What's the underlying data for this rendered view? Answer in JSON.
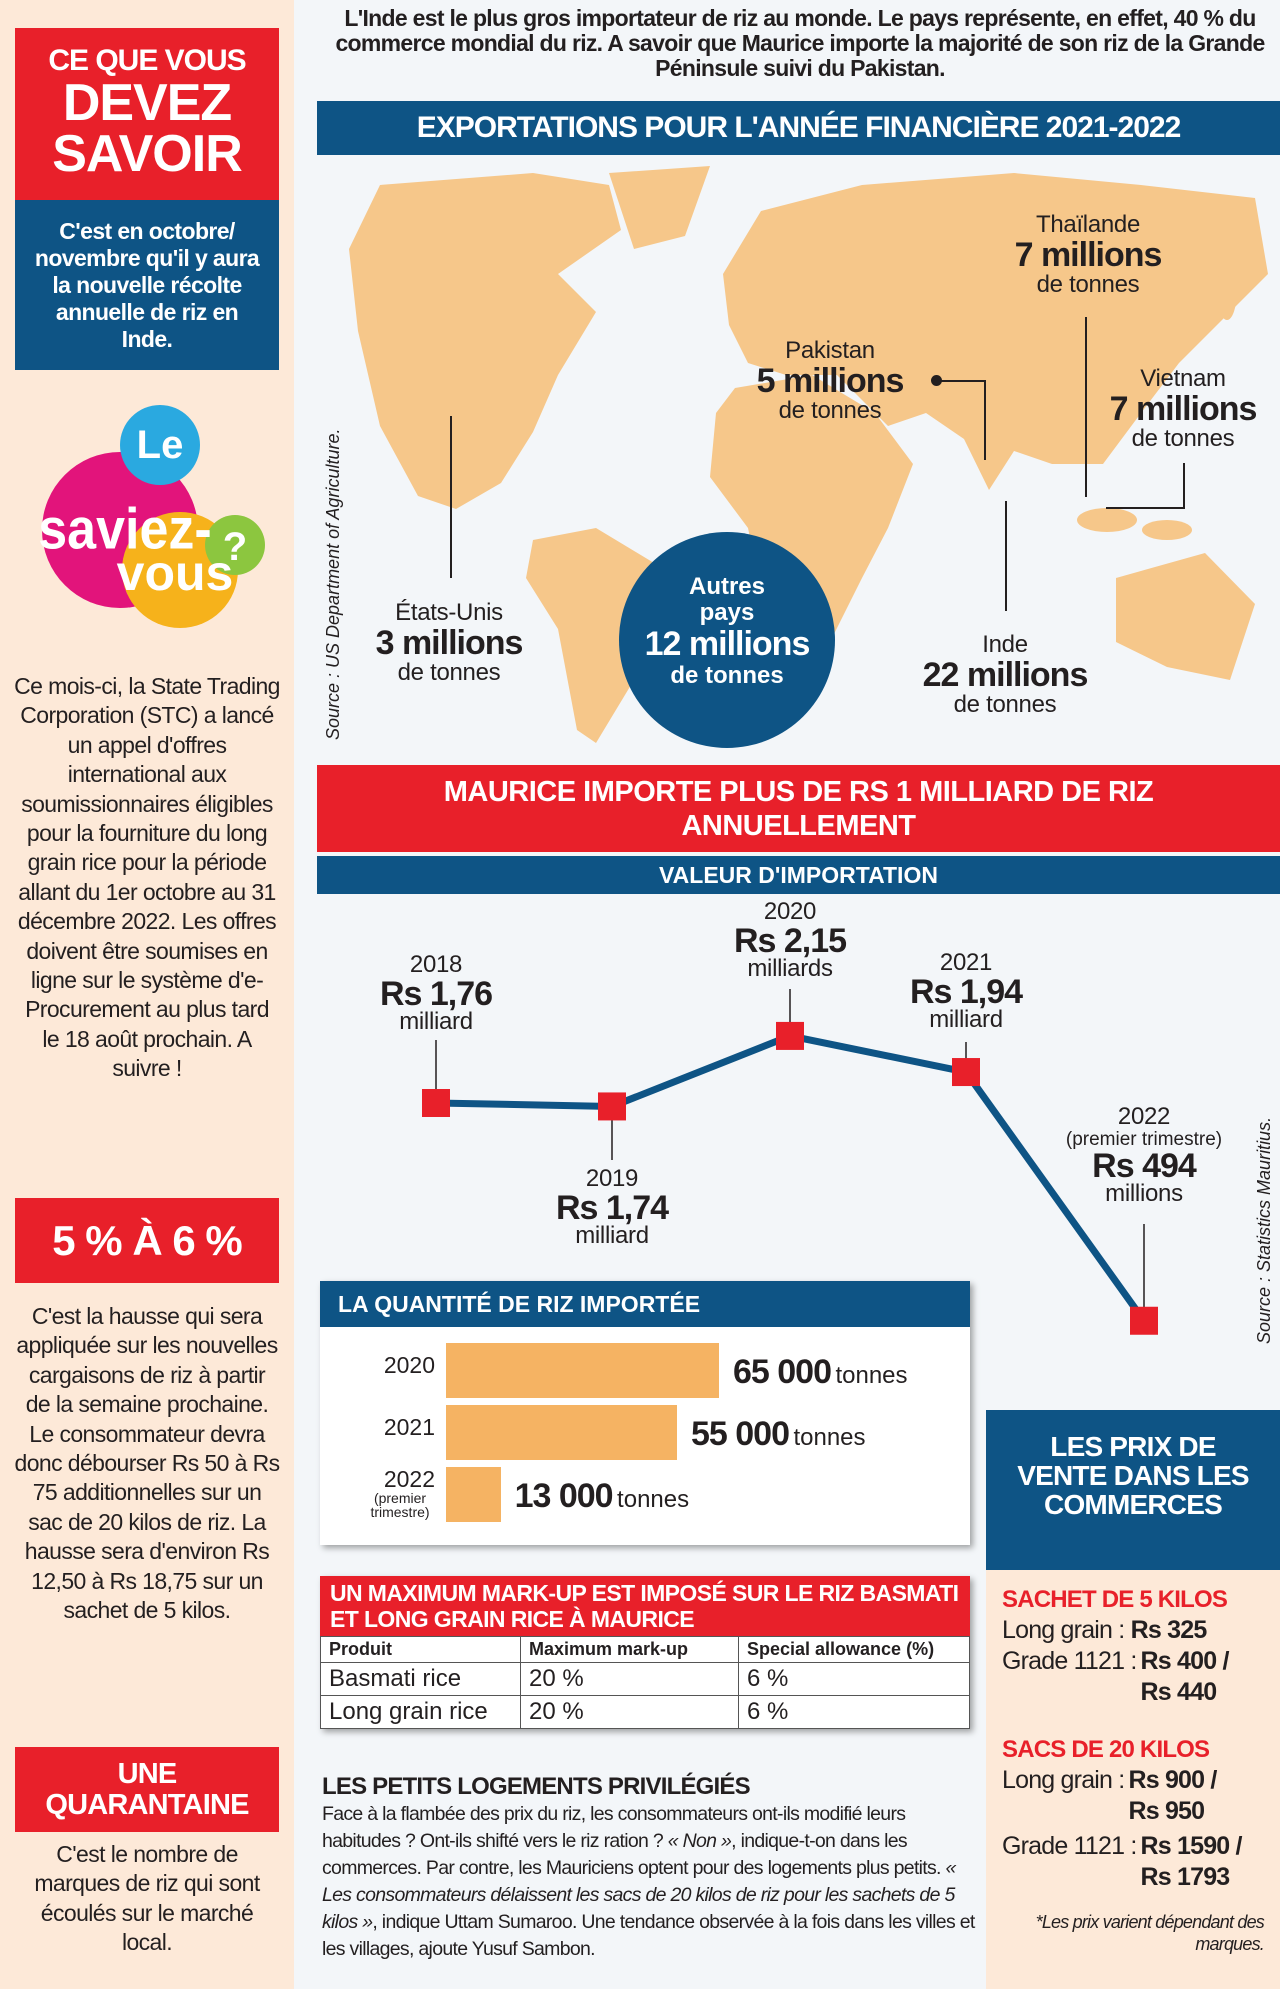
{
  "left": {
    "box1_title": [
      "CE QUE VOUS",
      "DEVEZ",
      "SAVOIR"
    ],
    "box1_sub": "C'est en octobre/ novembre qu'il y aura la nouvelle récolte annuelle de riz en Inde.",
    "logo_text": [
      "Le",
      "saviez-",
      "vous",
      "?"
    ],
    "para1": "Ce mois-ci, la State Trading Corporation (STC) a lancé un appel d'offres international aux soumissionnaires éligibles pour la fourniture du long grain rice pour la période allant du 1er octobre au 31 décembre 2022. Les offres doivent être soumises en ligne sur le système d'e-Procurement au plus tard le 18 août prochain. A suivre !",
    "box2_title": "5 % À 6 %",
    "para2": "C'est la hausse qui sera appliquée sur les nouvelles cargaisons de riz à partir de la semaine prochaine. Le consommateur devra donc débourser Rs 50 à Rs 75 additionnelles sur un sac de 20 kilos de riz. La hausse sera d'environ Rs 12,50 à Rs 18,75 sur un sachet de 5 kilos.",
    "box3_title": [
      "UNE",
      "QUARANTAINE"
    ],
    "para3": "C'est le nombre de marques de riz qui sont écoulés sur le marché local."
  },
  "intro": "L'Inde est le plus gros importateur de riz au monde. Le pays représente, en effet, 40 % du commerce mondial du riz. A savoir que Maurice importe la majorité de son riz de la Grande Péninsule suivi du Pakistan.",
  "map": {
    "title": "EXPORTATIONS POUR L'ANNÉE FINANCIÈRE 2021-2022",
    "source": "Source : US Department of Agriculture.",
    "unit": "de tonnes",
    "countries": [
      {
        "name": "Thaïlande",
        "value": "7 millions"
      },
      {
        "name": "Pakistan",
        "value": "5 millions"
      },
      {
        "name": "Vietnam",
        "value": "7 millions"
      },
      {
        "name": "Inde",
        "value": "22 millions"
      },
      {
        "name": "États-Unis",
        "value": "3 millions"
      }
    ],
    "others": {
      "name": "Autres pays",
      "value": "12 millions",
      "unit": "de tonnes"
    },
    "land_color": "#f6c78a"
  },
  "imports": {
    "title": "MAURICE IMPORTE PLUS DE RS 1 MILLIARD DE RIZ ANNUELLEMENT",
    "subtitle": "VALEUR D'IMPORTATION",
    "source": "Source : Statistics Mauritius."
  },
  "chart_data": [
    {
      "type": "line",
      "title": "VALEUR D'IMPORTATION",
      "unit": "Rs milliards",
      "categories": [
        "2018",
        "2019",
        "2020",
        "2021",
        "2022"
      ],
      "values": [
        1.76,
        1.74,
        2.15,
        1.94,
        0.494
      ],
      "labels": [
        {
          "year": "2018",
          "note": "",
          "value": "Rs 1,76",
          "unit": "milliard"
        },
        {
          "year": "2019",
          "note": "",
          "value": "Rs 1,74",
          "unit": "milliard"
        },
        {
          "year": "2020",
          "note": "",
          "value": "Rs 2,15",
          "unit": "milliards"
        },
        {
          "year": "2021",
          "note": "",
          "value": "Rs 1,94",
          "unit": "milliard"
        },
        {
          "year": "2022",
          "note": "(premier trimestre)",
          "value": "Rs 494",
          "unit": "millions"
        }
      ],
      "line_color": "#0e5485",
      "marker_color": "#e8202a"
    },
    {
      "type": "bar",
      "title": "LA QUANTITÉ DE RIZ IMPORTÉE",
      "orientation": "horizontal",
      "categories": [
        "2020",
        "2021",
        "2022"
      ],
      "category_notes": [
        "",
        "",
        "(premier trimestre)"
      ],
      "values": [
        65000,
        55000,
        13000
      ],
      "value_labels": [
        "65 000",
        "55 000",
        "13 000"
      ],
      "unit": "tonnes",
      "bar_color": "#f5b363"
    }
  ],
  "markup": {
    "title": "UN MAXIMUM MARK-UP EST IMPOSÉ SUR LE RIZ BASMATI ET LONG GRAIN RICE À MAURICE",
    "headers": [
      "Produit",
      "Maximum mark-up",
      "Special allowance (%)"
    ],
    "rows": [
      [
        "Basmati rice",
        "20 %",
        "6 %"
      ],
      [
        "Long grain rice",
        "20 %",
        "6 %"
      ]
    ]
  },
  "article": {
    "title": "LES PETITS LOGEMENTS PRIVILÉGIÉS",
    "p1": "Face à la flambée des prix du riz, les consommateurs ont-ils modifié leurs habitudes ? Ont-ils shifté vers le riz ration ? ",
    "q1": "« Non »",
    "p2": ", indique-t-on dans les commerces. Par contre, les Mauriciens optent pour des logements plus petits. ",
    "q2": "« Les consommateurs délaissent les sacs de 20 kilos de riz pour les sachets de 5 kilos »",
    "p3": ", indique Uttam Sumaroo. Une tendance observée à la fois dans les villes et les villages, ajoute Yusuf Sambon."
  },
  "prices": {
    "title": "LES PRIX DE VENTE DANS LES COMMERCES",
    "s1_title": "SACHET DE 5 KILOS",
    "s1": [
      {
        "label": "Long grain :",
        "value": "Rs 325"
      },
      {
        "label": "Grade 1121 :",
        "value": "Rs 400 / Rs 440"
      }
    ],
    "s2_title": "SACS DE 20 KILOS",
    "s2": [
      {
        "label": "Long grain :",
        "value": "Rs 900 / Rs 950"
      },
      {
        "label": "Grade 1121 :",
        "value": "Rs 1590 / Rs 1793"
      }
    ],
    "note": "*Les prix varient dépendant des marques."
  }
}
